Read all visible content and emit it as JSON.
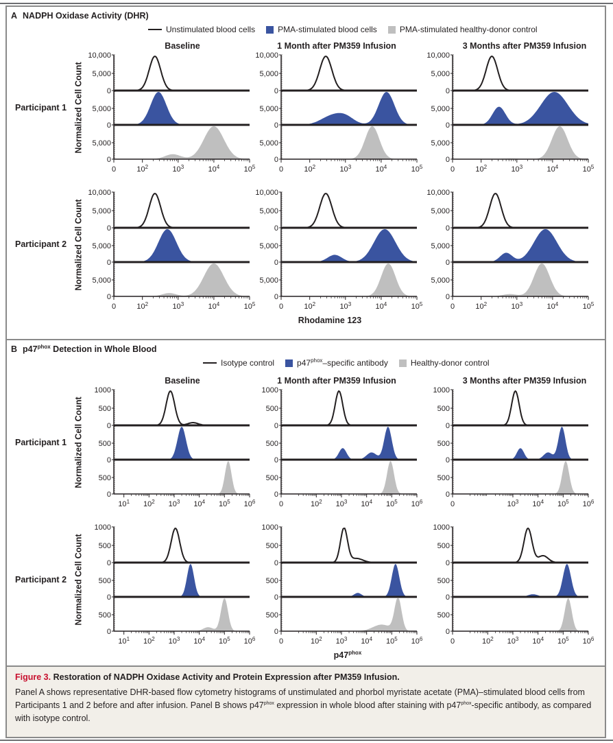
{
  "colors": {
    "unstimulated_line": "#231f20",
    "stimulated_fill": "#3a54a0",
    "control_fill": "#bfbfbf",
    "caption_bg": "#f2efe9",
    "figure_label": "#c8102e"
  },
  "panelA": {
    "letter": "A",
    "title": "NADPH Oxidase Activity (DHR)",
    "legend": [
      {
        "label": "Unstimulated blood cells",
        "swatch": "line"
      },
      {
        "label": "PMA-stimulated blood cells",
        "swatch": "blue-box"
      },
      {
        "label": "PMA-stimulated healthy-donor control",
        "swatch": "gray-box"
      }
    ],
    "columns": [
      "Baseline",
      "1 Month after PM359 Infusion",
      "3 Months after PM359 Infusion"
    ],
    "rows": [
      "Participant 1",
      "Participant 2"
    ],
    "ylabel": "Normalized Cell Count",
    "xlabel": "Rhodamine 123"
  },
  "panelB": {
    "letter": "B",
    "title_main": "p47",
    "title_sup": "phox",
    "title_rest": " Detection in Whole Blood",
    "legend": [
      {
        "label": "Isotype control",
        "swatch": "line"
      },
      {
        "label_main": "p47",
        "label_sup": "phox",
        "label_rest": "–specific antibody",
        "swatch": "blue-box"
      },
      {
        "label": "Healthy-donor control",
        "swatch": "gray-box"
      }
    ],
    "columns": [
      "Baseline",
      "1 Month after PM359 Infusion",
      "3 Months after PM359 Infusion"
    ],
    "rows": [
      "Participant 1",
      "Participant 2"
    ],
    "ylabel": "Normalized Cell Count",
    "xlabel_main": "p47",
    "xlabel_sup": "phox"
  },
  "caption": {
    "figure_label": "Figure 3.",
    "title": " Restoration of NADPH Oxidase Activity and Protein Expression after PM359 Infusion.",
    "body_1": "Panel A shows representative DHR-based flow cytometry histograms of unstimulated and phorbol myristate acetate (PMA)–stimulated blood cells from Participants 1 and 2 before and after infusion. Panel B shows p47",
    "body_sup1": "phox",
    "body_2": " expression in whole blood after staining with p47",
    "body_sup2": "phox",
    "body_3": "-specific antibody, as compared with isotype control."
  },
  "chart_data": [
    {
      "type": "area",
      "panel": "A",
      "title": "NADPH Oxidase Activity (DHR)",
      "xlabel": "Rhodamine 123",
      "ylabel": "Normalized Cell Count",
      "x_scale": "log (with 0)",
      "x_ticks": [
        "0",
        "10²",
        "10³",
        "10⁴",
        "10⁵"
      ],
      "x_tick_values": [
        0,
        100,
        1000,
        10000,
        100000
      ],
      "y_ticks_top_track": [
        "10,000",
        "5,000",
        "0"
      ],
      "y_ticks_other_tracks": [
        "5,000",
        "0"
      ],
      "ylim": [
        0,
        10000
      ],
      "legend": [
        "Unstimulated blood cells",
        "PMA-stimulated blood cells",
        "PMA-stimulated healthy-donor control"
      ],
      "legend_position": "top",
      "note": "Each track is a sum of Gaussian peaks on log10 x; peaks are [log10_center, relative_height, log10_width]",
      "subplots": [
        {
          "row": "Participant 1",
          "column": "Baseline",
          "unstimulated": [
            [
              2.35,
              1.0,
              0.16
            ]
          ],
          "stimulated": [
            [
              2.45,
              1.0,
              0.22
            ]
          ],
          "control": [
            [
              4.0,
              1.0,
              0.28
            ],
            [
              2.85,
              0.15,
              0.22
            ]
          ]
        },
        {
          "row": "Participant 1",
          "column": "1 Month after PM359 Infusion",
          "unstimulated": [
            [
              2.45,
              1.0,
              0.17
            ]
          ],
          "stimulated": [
            [
              4.15,
              1.0,
              0.22
            ],
            [
              2.6,
              0.25,
              0.3
            ],
            [
              3.0,
              0.22,
              0.25
            ]
          ],
          "control": [
            [
              3.75,
              1.0,
              0.2
            ]
          ]
        },
        {
          "row": "Participant 1",
          "column": "3 Months after PM359 Infusion",
          "unstimulated": [
            [
              2.3,
              1.0,
              0.16
            ]
          ],
          "stimulated": [
            [
              2.5,
              0.55,
              0.18
            ],
            [
              4.05,
              1.0,
              0.38
            ]
          ],
          "control": [
            [
              4.2,
              1.0,
              0.22
            ],
            [
              2.8,
              0.02,
              0.25
            ]
          ]
        },
        {
          "row": "Participant 2",
          "column": "Baseline",
          "unstimulated": [
            [
              2.35,
              1.0,
              0.16
            ]
          ],
          "stimulated": [
            [
              2.7,
              1.0,
              0.25
            ]
          ],
          "control": [
            [
              4.0,
              1.0,
              0.28
            ],
            [
              2.75,
              0.1,
              0.2
            ]
          ]
        },
        {
          "row": "Participant 2",
          "column": "1 Month after PM359 Infusion",
          "unstimulated": [
            [
              2.45,
              1.0,
              0.17
            ]
          ],
          "stimulated": [
            [
              4.1,
              1.0,
              0.3
            ],
            [
              2.7,
              0.22,
              0.2
            ]
          ],
          "control": [
            [
              4.2,
              1.0,
              0.2
            ]
          ]
        },
        {
          "row": "Participant 2",
          "column": "3 Months after PM359 Infusion",
          "unstimulated": [
            [
              2.4,
              1.0,
              0.16
            ]
          ],
          "stimulated": [
            [
              3.8,
              1.0,
              0.32
            ],
            [
              2.7,
              0.28,
              0.17
            ]
          ],
          "control": [
            [
              3.7,
              1.0,
              0.22
            ],
            [
              2.8,
              0.07,
              0.2
            ]
          ]
        }
      ]
    },
    {
      "type": "area",
      "panel": "B",
      "title": "p47phox Detection in Whole Blood",
      "xlabel": "p47phox",
      "ylabel": "Normalized Cell Count",
      "x_scale": "log",
      "x_ticks_baseline": [
        "10¹",
        "10²",
        "10³",
        "10⁴",
        "10⁵",
        "10⁶"
      ],
      "x_ticks_1_month": [
        "0",
        "10²",
        "10³",
        "10⁴",
        "10⁵",
        "10⁶"
      ],
      "x_ticks_3_months_p1": [
        "0",
        "10³",
        "10⁴",
        "10⁵",
        "10⁶"
      ],
      "x_ticks_3_months_p2": [
        "0",
        "10²",
        "10³",
        "10⁴",
        "10⁵",
        "10⁶"
      ],
      "y_ticks_top_track": [
        "1000",
        "500",
        "0"
      ],
      "y_ticks_other_tracks": [
        "500",
        "0"
      ],
      "ylim": [
        0,
        1000
      ],
      "legend": [
        "Isotype control",
        "p47phox–specific antibody",
        "Healthy-donor control"
      ],
      "legend_position": "top",
      "note": "Each track is a sum of Gaussian peaks on log10 x; peaks are [log10_center, relative_height, log10_width]",
      "subplots": [
        {
          "row": "Participant 1",
          "column": "Baseline",
          "unstimulated": [
            [
              2.85,
              1.0,
              0.17
            ],
            [
              3.75,
              0.08,
              0.2
            ]
          ],
          "stimulated": [
            [
              3.3,
              1.0,
              0.17
            ]
          ],
          "control": [
            [
              5.15,
              1.0,
              0.13
            ]
          ]
        },
        {
          "row": "Participant 1",
          "column": "1 Month after PM359 Infusion",
          "unstimulated": [
            [
              2.9,
              1.0,
              0.15
            ]
          ],
          "stimulated": [
            [
              3.05,
              0.35,
              0.15
            ],
            [
              4.2,
              0.22,
              0.2
            ],
            [
              4.85,
              1.0,
              0.15
            ]
          ],
          "control": [
            [
              4.95,
              1.0,
              0.14
            ]
          ]
        },
        {
          "row": "Participant 1",
          "column": "3 Months after PM359 Infusion",
          "unstimulated": [
            [
              3.1,
              1.0,
              0.15
            ]
          ],
          "stimulated": [
            [
              3.3,
              0.35,
              0.14
            ],
            [
              4.4,
              0.22,
              0.18
            ],
            [
              4.95,
              1.0,
              0.14
            ]
          ],
          "control": [
            [
              5.1,
              1.0,
              0.14
            ]
          ]
        },
        {
          "row": "Participant 2",
          "column": "Baseline",
          "unstimulated": [
            [
              3.05,
              1.0,
              0.17
            ]
          ],
          "stimulated": [
            [
              3.65,
              1.0,
              0.14
            ],
            [
              2.7,
              0.02,
              0.2
            ]
          ],
          "control": [
            [
              5.0,
              1.0,
              0.14
            ],
            [
              4.35,
              0.12,
              0.2
            ]
          ]
        },
        {
          "row": "Participant 2",
          "column": "1 Month after PM359 Infusion",
          "unstimulated": [
            [
              3.1,
              1.0,
              0.14
            ],
            [
              3.6,
              0.12,
              0.25
            ]
          ],
          "stimulated": [
            [
              3.65,
              0.12,
              0.15
            ],
            [
              5.15,
              1.0,
              0.15
            ]
          ],
          "control": [
            [
              5.25,
              1.0,
              0.14
            ],
            [
              4.6,
              0.2,
              0.35
            ]
          ]
        },
        {
          "row": "Participant 2",
          "column": "3 Months after PM359 Infusion",
          "unstimulated": [
            [
              3.6,
              1.0,
              0.16
            ],
            [
              4.2,
              0.2,
              0.2
            ]
          ],
          "stimulated": [
            [
              3.8,
              0.08,
              0.2
            ],
            [
              5.15,
              1.0,
              0.16
            ]
          ],
          "control": [
            [
              5.2,
              1.0,
              0.14
            ]
          ]
        }
      ]
    }
  ]
}
